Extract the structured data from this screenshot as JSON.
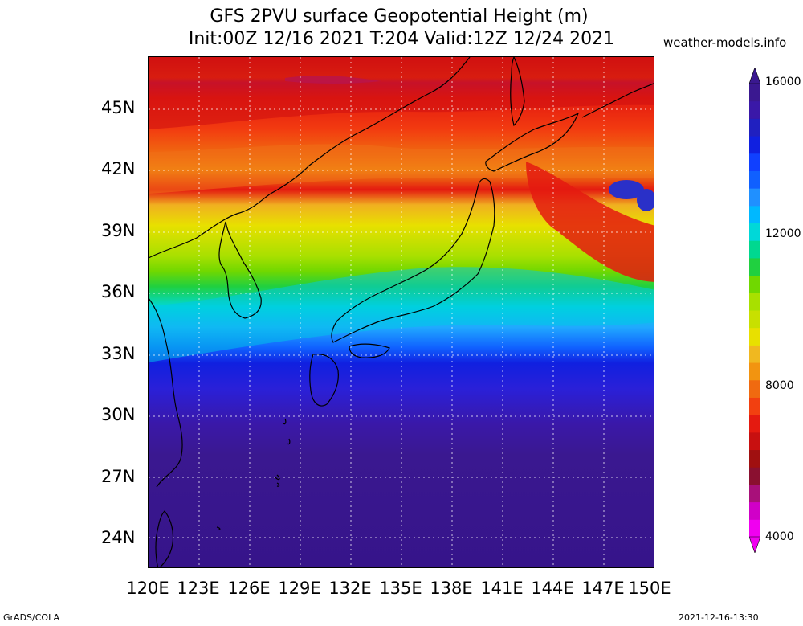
{
  "title": {
    "line1": "GFS 2PVU surface Geopotential Height (m)",
    "line2": "Init:00Z 12/16 2021 T:204 Valid:12Z 12/24 2021"
  },
  "site": "weather-models.info",
  "map": {
    "lat_labels": [
      "45N",
      "42N",
      "39N",
      "36N",
      "33N",
      "30N",
      "27N",
      "24N"
    ],
    "lon_labels": [
      "120E",
      "123E",
      "126E",
      "129E",
      "132E",
      "135E",
      "138E",
      "141E",
      "144E",
      "147E",
      "150E"
    ]
  },
  "colorbar": {
    "labels": [
      "16000",
      "12000",
      "8000",
      "4000"
    ],
    "colors": [
      "#f000f0",
      "#d000c8",
      "#a8107a",
      "#8a1030",
      "#a01010",
      "#c81010",
      "#e41a10",
      "#f24010",
      "#f06a10",
      "#f29410",
      "#f0b820",
      "#e8e000",
      "#c8e000",
      "#a8e000",
      "#70d800",
      "#20d040",
      "#00d890",
      "#00d8d8",
      "#00b8ff",
      "#2090ff",
      "#1060ff",
      "#1040ff",
      "#1020e0",
      "#2020c0",
      "#3a18a8",
      "#3a1890"
    ]
  },
  "footer": {
    "left": "GrADS/COLA",
    "right": "2021-12-16-13:30"
  }
}
